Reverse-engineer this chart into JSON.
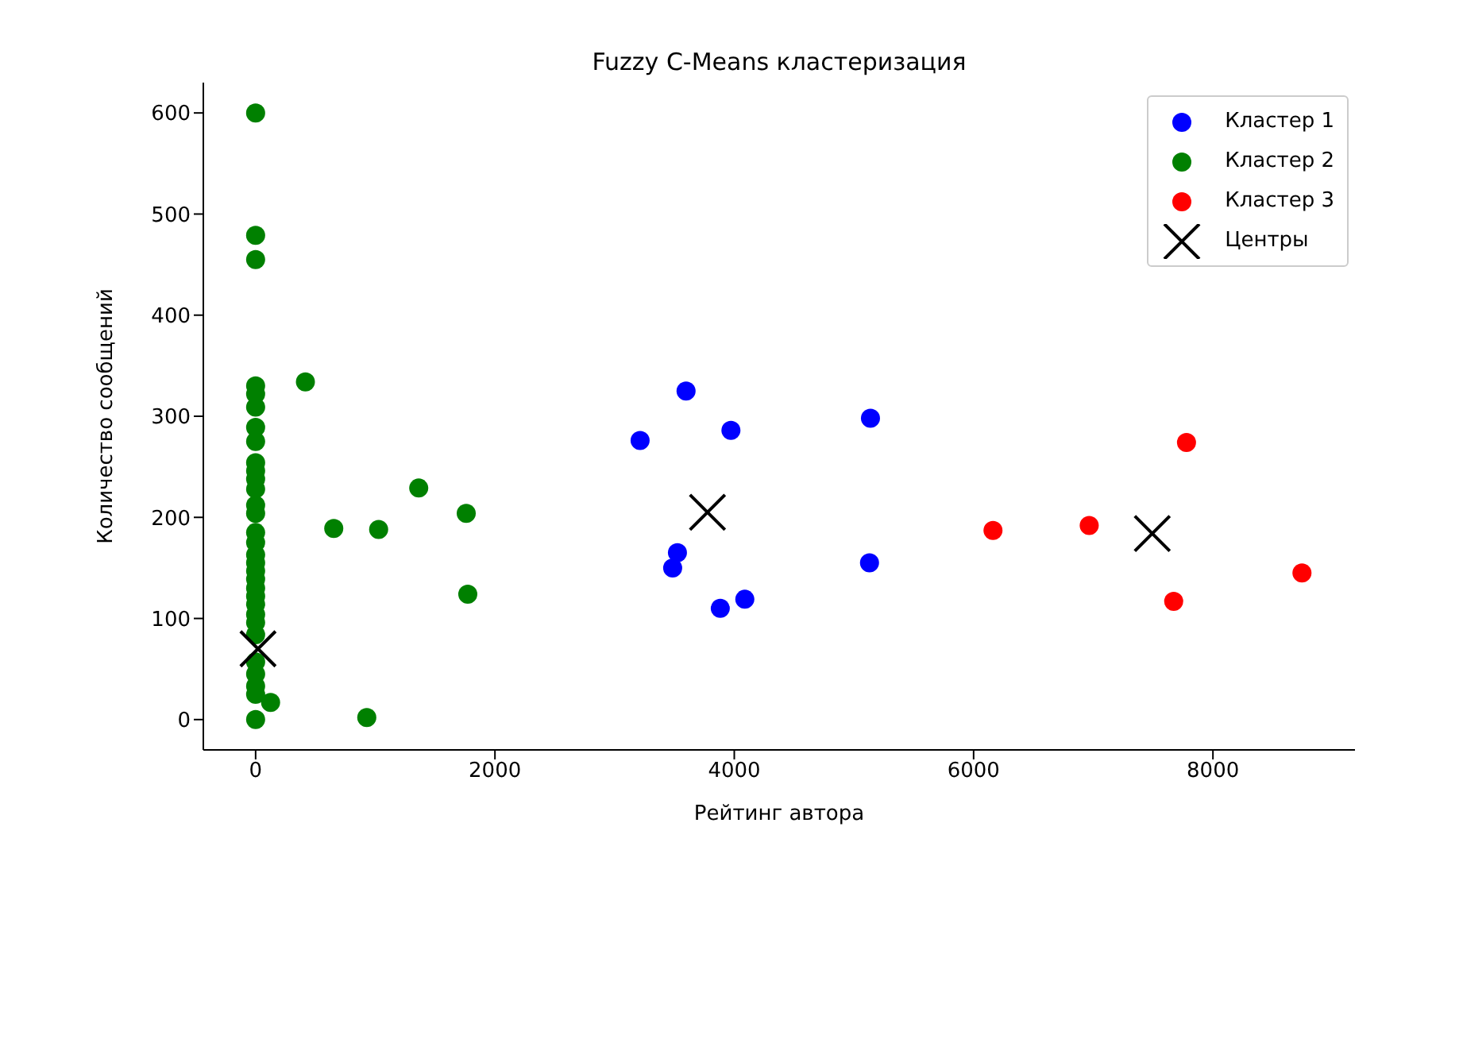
{
  "chart_data": {
    "type": "scatter",
    "title": "Fuzzy C-Means кластеризация",
    "xlabel": "Рейтинг автора",
    "ylabel": "Количество сообщений",
    "xlim": [
      -437,
      9187
    ],
    "ylim": [
      -30,
      630
    ],
    "xticks": [
      0,
      2000,
      4000,
      6000,
      8000
    ],
    "yticks": [
      0,
      100,
      200,
      300,
      400,
      500,
      600
    ],
    "grid": false,
    "legend": "top right",
    "marker": "circle",
    "series": [
      {
        "name": "Кластер 1",
        "color": "#0000ff",
        "x": [
          3597,
          3213,
          3972,
          5138,
          3525,
          3485,
          4088,
          3883,
          5130
        ],
        "values": [
          325,
          276,
          286,
          298,
          165,
          150,
          119,
          110,
          155
        ]
      },
      {
        "name": "Кластер 2",
        "color": "#008000",
        "x": [
          0,
          0,
          0,
          416,
          0,
          0,
          0,
          0,
          0,
          0,
          0,
          0,
          0,
          0,
          0,
          0,
          0,
          0,
          0,
          0,
          0,
          0,
          0,
          0,
          0,
          0,
          0,
          0,
          0,
          0,
          0,
          0,
          653,
          1028,
          1363,
          1760,
          1773,
          929,
          125
        ],
        "values": [
          600,
          479,
          455,
          334,
          330,
          322,
          309,
          289,
          275,
          254,
          246,
          238,
          228,
          212,
          204,
          185,
          175,
          163,
          155,
          147,
          139,
          130,
          122,
          114,
          104,
          96,
          84,
          57,
          45,
          33,
          25,
          0,
          189,
          188,
          229,
          204,
          124,
          2,
          17
        ]
      },
      {
        "name": "Кластер 3",
        "color": "#ff0000",
        "x": [
          7779,
          6162,
          6966,
          8744,
          7672
        ],
        "values": [
          274,
          187,
          192,
          145,
          117
        ]
      },
      {
        "name": "Центры",
        "color": "#000000",
        "marker": "cross",
        "x": [
          3776,
          7493,
          20
        ],
        "values": [
          205,
          184,
          70
        ]
      }
    ]
  }
}
